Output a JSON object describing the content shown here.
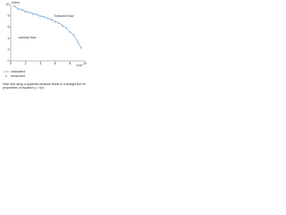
{
  "chart_data": {
    "type": "line",
    "y_label": "h/mm",
    "x_label": "Le/d",
    "annotations": [
      "Turbulent flow",
      "Laminar flow"
    ],
    "xlim": [
      0,
      10
    ],
    "ylim": [
      0,
      10
    ],
    "xticks": [
      0,
      2,
      4,
      6,
      8,
      10
    ],
    "yticks": [
      0,
      2,
      4,
      6,
      8,
      10
    ],
    "series": [
      {
        "name": "calculated",
        "color": "#3d7fb5",
        "style": "line",
        "x": [
          0.5,
          1,
          1.5,
          2,
          2.5,
          3,
          3.5,
          4,
          4.5,
          5,
          5.5,
          6,
          6.5,
          7,
          7.5,
          8,
          8.5,
          9,
          9.5
        ],
        "values": [
          9.6,
          9.3,
          9.0,
          8.8,
          8.6,
          8.4,
          8.2,
          8.0,
          7.8,
          7.6,
          7.3,
          7.0,
          6.7,
          6.3,
          5.8,
          5.2,
          4.5,
          3.5,
          2.2
        ]
      },
      {
        "name": "measured",
        "color": "#3d7fb5",
        "style": "markers",
        "x": [
          0.5,
          1,
          1.5,
          2,
          2.5,
          3,
          3.5,
          4,
          4.5,
          5,
          5.5,
          6,
          6.5,
          7,
          7.5,
          8,
          8.5,
          9,
          9.5
        ],
        "values": [
          9.7,
          9.2,
          9.1,
          8.7,
          8.6,
          8.3,
          8.2,
          7.9,
          7.8,
          7.5,
          7.3,
          6.9,
          6.7,
          6.2,
          5.9,
          5.1,
          4.6,
          3.4,
          2.3
        ]
      }
    ],
    "note": "Note that using a quadratic distance leads to a straight line for proportions of equation y = f(x)"
  }
}
